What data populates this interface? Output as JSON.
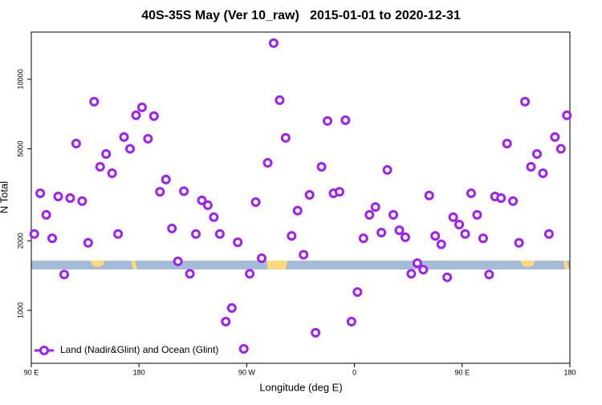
{
  "chart_data": {
    "type": "scatter",
    "title": "40S-35S May (Ver 10_raw)   2015-01-01 to 2020-12-31",
    "x_label": "Longitude (deg E)",
    "y_label": "N Total",
    "y_scale": "log",
    "xlim": [
      90,
      540
    ],
    "ylim": [
      590,
      16000
    ],
    "xticks": [
      {
        "value": 90,
        "label": "90 E"
      },
      180,
      {
        "value": 270,
        "label": "90 W"
      },
      {
        "value": 360,
        "label": "0"
      },
      {
        "value": 450,
        "label": "90 E"
      },
      {
        "value": 540,
        "label": "180"
      }
    ],
    "yticks": [
      1000,
      2000,
      5000,
      10000
    ],
    "legend": "bottom-left",
    "series": [
      {
        "name": "Land (Nadir&Glint) and Ocean (Glint)",
        "color": "#a020f0",
        "x": [
          92.5,
          97.5,
          102.5,
          107.5,
          112.5,
          117.5,
          122.5,
          127.5,
          132.5,
          137.5,
          142.5,
          147.5,
          152.5,
          157.5,
          162.5,
          167.5,
          172.5,
          177.5,
          182.5,
          187.5,
          192.5,
          197.5,
          202.5,
          207.5,
          212.5,
          217.5,
          222.5,
          227.5,
          232.5,
          237.5,
          242.5,
          247.5,
          252.5,
          257.5,
          262.5,
          267.5,
          272.5,
          277.5,
          282.5,
          287.5,
          292.5,
          297.5,
          302.5,
          307.5,
          312.5,
          317.5,
          322.5,
          327.5,
          332.5,
          337.5,
          342.5,
          347.5,
          352.5,
          357.5,
          362.5,
          367.5,
          372.5,
          377.5,
          382.5,
          387.5,
          392.5,
          397.5,
          402.5,
          407.5,
          412.5,
          417.5,
          422.5,
          427.5,
          432.5,
          437.5,
          442.5,
          447.5,
          452.5,
          457.5,
          462.5,
          467.5,
          472.5,
          477.5,
          482.5,
          487.5,
          492.5,
          497.5,
          502.5,
          507.5,
          512.5,
          517.5,
          522.5,
          527.5,
          532.5,
          537.5
        ],
        "values": [
          2140,
          3210,
          2590,
          2050,
          3110,
          1430,
          3060,
          5270,
          2970,
          1960,
          8000,
          4180,
          4750,
          3920,
          2140,
          5620,
          5000,
          6980,
          7560,
          5530,
          6930,
          3260,
          3680,
          2260,
          1630,
          3280,
          1440,
          2140,
          2990,
          2850,
          2530,
          2140,
          894,
          1024,
          1970,
          681,
          1440,
          2940,
          1680,
          4350,
          14330,
          8120,
          5580,
          2100,
          2700,
          1740,
          3160,
          800,
          4180,
          6600,
          3210,
          3260,
          6650,
          894,
          1200,
          2050,
          2590,
          2800,
          2170,
          4050,
          2590,
          2220,
          2070,
          1440,
          1600,
          1500,
          3140,
          2100,
          1930,
          1390,
          2530,
          2350,
          2140,
          3210,
          2590,
          2050,
          1430,
          3110,
          3060,
          5270,
          2970,
          1960,
          8000,
          4180,
          4750,
          3920,
          2140,
          5620,
          5000,
          6980
        ]
      }
    ]
  }
}
